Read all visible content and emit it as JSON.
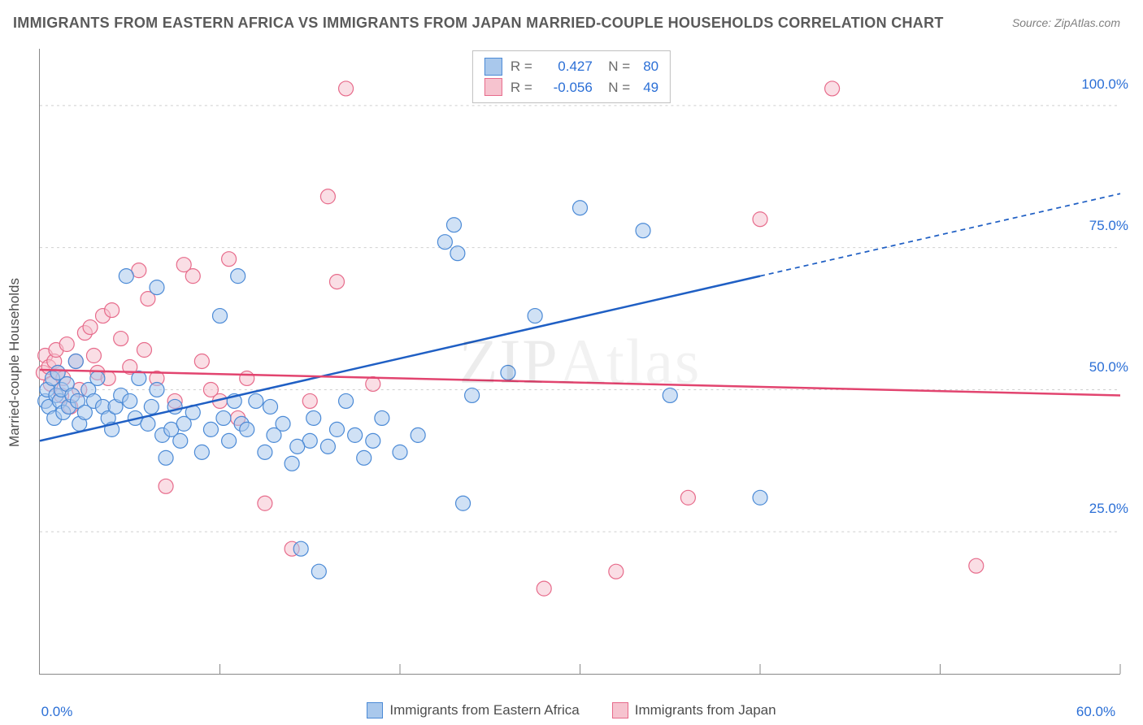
{
  "title": "IMMIGRANTS FROM EASTERN AFRICA VS IMMIGRANTS FROM JAPAN MARRIED-COUPLE HOUSEHOLDS CORRELATION CHART",
  "source": "Source: ZipAtlas.com",
  "y_axis_title": "Married-couple Households",
  "watermark": "ZIPAtlas",
  "chart": {
    "type": "scatter",
    "background_color": "#ffffff",
    "grid_color": "#cfcfcf",
    "axis_color": "#888888",
    "xlim": [
      0,
      60
    ],
    "ylim": [
      0,
      110
    ],
    "xticks": [
      0,
      30,
      60
    ],
    "xtick_labels": [
      "0.0%",
      "",
      "60.0%"
    ],
    "xtick_positions_minor": [
      10,
      20,
      30,
      40,
      50
    ],
    "yticks": [
      25,
      50,
      75,
      100
    ],
    "ytick_labels": [
      "25.0%",
      "50.0%",
      "75.0%",
      "100.0%"
    ],
    "marker_radius": 9,
    "marker_opacity": 0.55,
    "line_width": 2.5,
    "dash_pattern": "6,5"
  },
  "series": [
    {
      "name": "Immigrants from Eastern Africa",
      "color_fill": "#a9c8ec",
      "color_stroke": "#4b8ad6",
      "line_color": "#1f5fc4",
      "R": "0.427",
      "N": "80",
      "trend": {
        "x1": 0,
        "y1": 41,
        "x2": 40,
        "y2": 70,
        "x2_ext": 60,
        "y2_ext": 84.5
      },
      "points": [
        [
          0.3,
          48
        ],
        [
          0.4,
          50
        ],
        [
          0.5,
          47
        ],
        [
          0.7,
          52
        ],
        [
          0.8,
          45
        ],
        [
          0.9,
          49
        ],
        [
          1.0,
          53
        ],
        [
          1.1,
          48
        ],
        [
          1.2,
          50
        ],
        [
          1.3,
          46
        ],
        [
          1.5,
          51
        ],
        [
          1.6,
          47
        ],
        [
          1.8,
          49
        ],
        [
          2.0,
          55
        ],
        [
          2.1,
          48
        ],
        [
          2.2,
          44
        ],
        [
          2.5,
          46
        ],
        [
          2.7,
          50
        ],
        [
          3.0,
          48
        ],
        [
          3.2,
          52
        ],
        [
          3.5,
          47
        ],
        [
          3.8,
          45
        ],
        [
          4.0,
          43
        ],
        [
          4.2,
          47
        ],
        [
          4.5,
          49
        ],
        [
          4.8,
          70
        ],
        [
          5.0,
          48
        ],
        [
          5.3,
          45
        ],
        [
          5.5,
          52
        ],
        [
          6.0,
          44
        ],
        [
          6.2,
          47
        ],
        [
          6.5,
          50
        ],
        [
          6.8,
          42
        ],
        [
          7.0,
          38
        ],
        [
          7.3,
          43
        ],
        [
          7.5,
          47
        ],
        [
          7.8,
          41
        ],
        [
          8.0,
          44
        ],
        [
          8.5,
          46
        ],
        [
          9.0,
          39
        ],
        [
          9.5,
          43
        ],
        [
          10.0,
          63
        ],
        [
          10.2,
          45
        ],
        [
          10.5,
          41
        ],
        [
          11.0,
          70
        ],
        [
          11.2,
          44
        ],
        [
          11.5,
          43
        ],
        [
          12.0,
          48
        ],
        [
          12.5,
          39
        ],
        [
          13.0,
          42
        ],
        [
          13.5,
          44
        ],
        [
          14.0,
          37
        ],
        [
          14.5,
          22
        ],
        [
          15.0,
          41
        ],
        [
          15.2,
          45
        ],
        [
          15.5,
          18
        ],
        [
          16.0,
          40
        ],
        [
          16.5,
          43
        ],
        [
          17.0,
          48
        ],
        [
          17.5,
          42
        ],
        [
          18.0,
          38
        ],
        [
          18.5,
          41
        ],
        [
          19.0,
          45
        ],
        [
          20.0,
          39
        ],
        [
          21.0,
          42
        ],
        [
          22.5,
          76
        ],
        [
          23.0,
          79
        ],
        [
          23.2,
          74
        ],
        [
          24.0,
          49
        ],
        [
          23.5,
          30
        ],
        [
          26.0,
          53
        ],
        [
          27.5,
          63
        ],
        [
          30.0,
          82
        ],
        [
          33.5,
          78
        ],
        [
          35.0,
          49
        ],
        [
          40.0,
          31
        ],
        [
          6.5,
          68
        ],
        [
          10.8,
          48
        ],
        [
          12.8,
          47
        ],
        [
          14.3,
          40
        ]
      ]
    },
    {
      "name": "Immigrants from Japan",
      "color_fill": "#f6c3cf",
      "color_stroke": "#e76b8b",
      "line_color": "#e2446f",
      "R": "-0.056",
      "N": "49",
      "trend": {
        "x1": 0,
        "y1": 53.5,
        "x2": 60,
        "y2": 49,
        "x2_ext": 60,
        "y2_ext": 49
      },
      "points": [
        [
          0.2,
          53
        ],
        [
          0.3,
          56
        ],
        [
          0.5,
          54
        ],
        [
          0.6,
          51
        ],
        [
          0.8,
          55
        ],
        [
          0.9,
          57
        ],
        [
          1.0,
          53
        ],
        [
          1.2,
          49
        ],
        [
          1.3,
          52
        ],
        [
          1.5,
          58
        ],
        [
          1.7,
          47
        ],
        [
          2.0,
          55
        ],
        [
          2.2,
          50
        ],
        [
          2.5,
          60
        ],
        [
          2.8,
          61
        ],
        [
          3.0,
          56
        ],
        [
          3.2,
          53
        ],
        [
          3.5,
          63
        ],
        [
          4.0,
          64
        ],
        [
          4.5,
          59
        ],
        [
          5.0,
          54
        ],
        [
          5.5,
          71
        ],
        [
          6.0,
          66
        ],
        [
          6.5,
          52
        ],
        [
          7.0,
          33
        ],
        [
          7.5,
          48
        ],
        [
          8.0,
          72
        ],
        [
          8.5,
          70
        ],
        [
          9.0,
          55
        ],
        [
          9.5,
          50
        ],
        [
          10.0,
          48
        ],
        [
          10.5,
          73
        ],
        [
          11.0,
          45
        ],
        [
          11.5,
          52
        ],
        [
          12.5,
          30
        ],
        [
          14.0,
          22
        ],
        [
          15.0,
          48
        ],
        [
          16.0,
          84
        ],
        [
          16.5,
          69
        ],
        [
          17.0,
          103
        ],
        [
          18.5,
          51
        ],
        [
          28.0,
          15
        ],
        [
          32.0,
          18
        ],
        [
          36.0,
          31
        ],
        [
          40.0,
          80
        ],
        [
          44.0,
          103
        ],
        [
          52.0,
          19
        ],
        [
          5.8,
          57
        ],
        [
          3.8,
          52
        ]
      ]
    }
  ],
  "legend_bottom": [
    {
      "label": "Immigrants from Eastern Africa",
      "fill": "#a9c8ec",
      "stroke": "#4b8ad6"
    },
    {
      "label": "Immigrants from Japan",
      "fill": "#f6c3cf",
      "stroke": "#e76b8b"
    }
  ]
}
